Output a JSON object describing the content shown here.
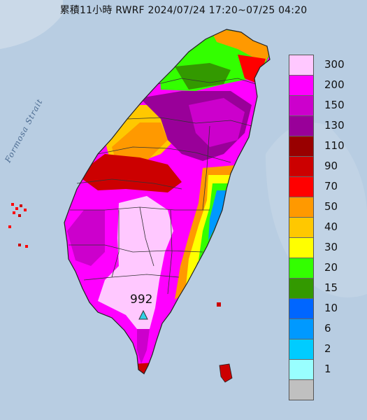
{
  "title": "累積11小時 RWRF 2024/07/24 17:20~07/25 04:20",
  "strait_label": "Formosa Strait",
  "peak_value": "992",
  "legend": {
    "bins": [
      {
        "label": "300",
        "color": "#ffc8ff"
      },
      {
        "label": "200",
        "color": "#ff00ff"
      },
      {
        "label": "150",
        "color": "#cc00cc"
      },
      {
        "label": "130",
        "color": "#990099"
      },
      {
        "label": "110",
        "color": "#990000"
      },
      {
        "label": "90",
        "color": "#cc0000"
      },
      {
        "label": "70",
        "color": "#ff0000"
      },
      {
        "label": "50",
        "color": "#ff9900"
      },
      {
        "label": "40",
        "color": "#ffc800"
      },
      {
        "label": "30",
        "color": "#ffff00"
      },
      {
        "label": "20",
        "color": "#33ff00"
      },
      {
        "label": "15",
        "color": "#339900"
      },
      {
        "label": "10",
        "color": "#0066ff"
      },
      {
        "label": "6",
        "color": "#0099ff"
      },
      {
        "label": "2",
        "color": "#00ccff"
      },
      {
        "label": "1",
        "color": "#99ffff"
      },
      {
        "label": "",
        "color": "#c0c0c0"
      }
    ]
  },
  "colors": {
    "sea": "#b8cde2",
    "land_mask": "#d8e3ee"
  }
}
